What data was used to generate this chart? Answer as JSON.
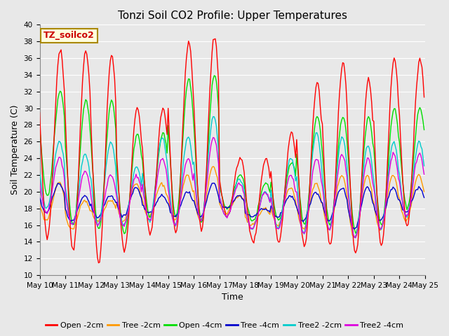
{
  "title": "Tonzi Soil CO2 Profile: Upper Temperatures",
  "xlabel": "Time",
  "ylabel": "Soil Temperature (C)",
  "ylim": [
    10,
    40
  ],
  "background_color": "#e8e8e8",
  "plot_bg_color": "#e8e8e8",
  "annotation_text": "TZ_soilco2",
  "annotation_bg": "#ffffdd",
  "annotation_border": "#aa8800",
  "legend_entries": [
    "Open -2cm",
    "Tree -2cm",
    "Open -4cm",
    "Tree -4cm",
    "Tree2 -2cm",
    "Tree2 -4cm"
  ],
  "line_colors": [
    "#ff0000",
    "#ff9900",
    "#00dd00",
    "#0000cc",
    "#00cccc",
    "#dd00dd"
  ],
  "line_width": 1.0,
  "title_fontsize": 11,
  "axis_fontsize": 9,
  "tick_fontsize": 7.5,
  "legend_fontsize": 8
}
